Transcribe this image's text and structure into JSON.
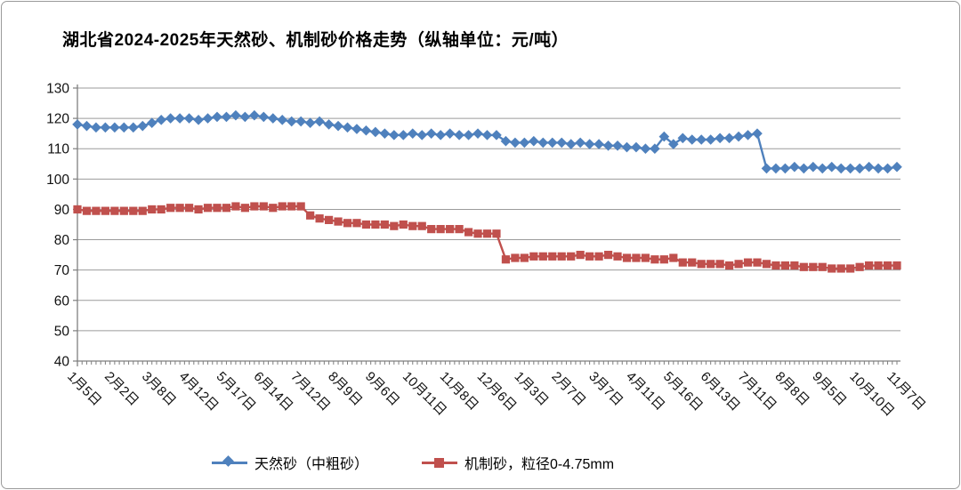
{
  "chart_data": {
    "type": "line",
    "title": "湖北省2024-2025年天然砂、机制砂价格走势（纵轴单位：元/吨）",
    "y_unit": "元/吨",
    "ylim": [
      40,
      130
    ],
    "y_ticks": [
      40,
      50,
      60,
      70,
      80,
      90,
      100,
      110,
      120,
      130
    ],
    "grid": true,
    "legend_position": "bottom",
    "x_label_interval": 4,
    "x_tick_labels": [
      "1月5日",
      "2月2日",
      "3月8日",
      "4月12日",
      "5月17日",
      "6月14日",
      "7月12日",
      "8月9日",
      "9月6日",
      "10月11日",
      "11月8日",
      "12月6日",
      "1月3日",
      "2月7日",
      "3月7日",
      "4月11日",
      "5月16日",
      "6月13日",
      "7月11日",
      "8月8日",
      "9月5日",
      "10月10日",
      "11月7日"
    ],
    "axis_color": "#7f7f7f",
    "grid_color": "#9b9b9b",
    "series": [
      {
        "name": "天然砂（中粗砂）",
        "color": "#4F81BD",
        "marker": "diamond",
        "values": [
          118,
          117.5,
          117,
          117,
          117,
          117,
          117,
          117.5,
          118.5,
          119.5,
          120,
          120,
          120,
          119.5,
          120,
          120.5,
          120.5,
          121,
          120.5,
          121,
          120.5,
          120,
          119.5,
          119,
          119,
          118.5,
          119,
          118,
          117.5,
          117,
          116.5,
          116,
          115.5,
          115,
          114.5,
          114.5,
          115,
          114.5,
          115,
          114.5,
          115,
          114.5,
          114.5,
          115,
          114.5,
          114.5,
          112.5,
          112,
          112,
          112.5,
          112,
          112,
          112,
          111.5,
          112,
          111.5,
          111.5,
          111,
          111,
          110.5,
          110.5,
          110,
          110,
          114,
          111.5,
          113.5,
          113,
          113,
          113,
          113.5,
          113.5,
          114,
          114.5,
          115,
          103.5,
          103.5,
          103.5,
          104,
          103.5,
          104,
          103.5,
          104,
          103.5,
          103.5,
          103.5,
          104,
          103.5,
          103.5,
          104
        ]
      },
      {
        "name": "机制砂，粒径0-4.75mm",
        "color": "#C0504D",
        "marker": "square",
        "values": [
          90,
          89.5,
          89.5,
          89.5,
          89.5,
          89.5,
          89.5,
          89.5,
          90,
          90,
          90.5,
          90.5,
          90.5,
          90,
          90.5,
          90.5,
          90.5,
          91,
          90.5,
          91,
          91,
          90.5,
          91,
          91,
          91,
          88,
          87,
          86.5,
          86,
          85.5,
          85.5,
          85,
          85,
          85,
          84.5,
          85,
          84.5,
          84.5,
          83.5,
          83.5,
          83.5,
          83.5,
          82.5,
          82,
          82,
          82,
          73.5,
          74,
          74,
          74.5,
          74.5,
          74.5,
          74.5,
          74.5,
          75,
          74.5,
          74.5,
          75,
          74.5,
          74,
          74,
          74,
          73.5,
          73.5,
          74,
          72.5,
          72.5,
          72,
          72,
          72,
          71.5,
          72,
          72.5,
          72.5,
          72,
          71.5,
          71.5,
          71.5,
          71,
          71,
          71,
          70.5,
          70.5,
          70.5,
          71,
          71.5,
          71.5,
          71.5,
          71.5
        ]
      }
    ]
  }
}
